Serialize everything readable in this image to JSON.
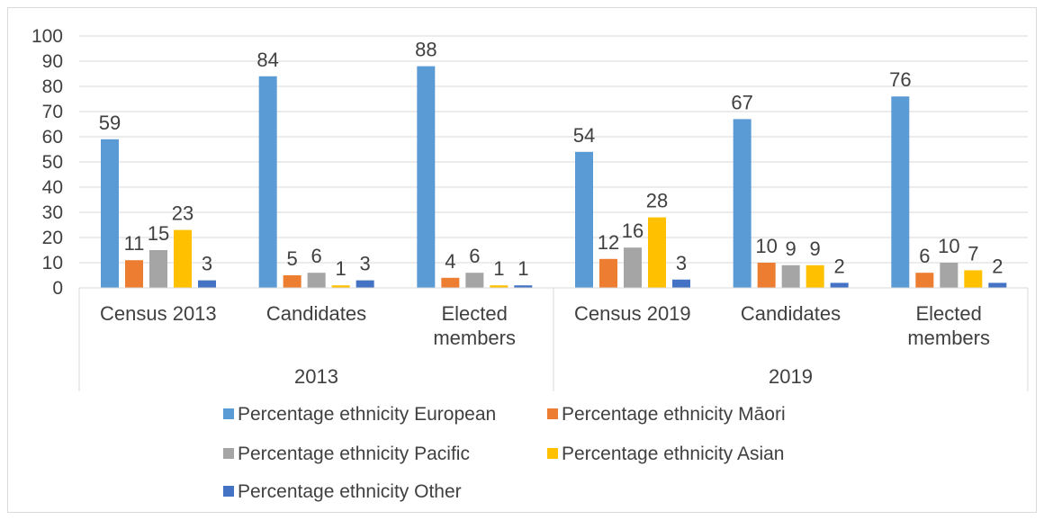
{
  "chart_data": {
    "type": "bar",
    "y_ticks": [
      "0",
      "10",
      "20",
      "30",
      "40",
      "50",
      "60",
      "70",
      "80",
      "90",
      "100"
    ],
    "ylim": [
      0,
      100
    ],
    "grid": "horizontal",
    "legend_position": "bottom",
    "groups": [
      {
        "name": "2013",
        "categories": [
          [
            "Census 2013"
          ],
          [
            "Candidates"
          ],
          [
            "Elected",
            "members"
          ]
        ]
      },
      {
        "name": "2019",
        "categories": [
          [
            "Census 2019"
          ],
          [
            "Candidates"
          ],
          [
            "Elected",
            "members"
          ]
        ]
      }
    ],
    "series": [
      {
        "name": "Percentage ethnicity European",
        "color": "#5b9bd5",
        "values": [
          59,
          84,
          88,
          54,
          67,
          76
        ],
        "labels": [
          "59",
          "84",
          "88",
          "54",
          "67",
          "76"
        ]
      },
      {
        "name": "Percentage ethnicity Māori",
        "color": "#ed7d31",
        "values": [
          11,
          5,
          4,
          11.5,
          10,
          6
        ],
        "labels": [
          "11",
          "5",
          "4",
          "12",
          "10",
          "6"
        ]
      },
      {
        "name": "Percentage ethnicity Pacific",
        "color": "#a5a5a5",
        "values": [
          15,
          6,
          6,
          16,
          9,
          10
        ],
        "labels": [
          "15",
          "6",
          "6",
          "16",
          "9",
          "10"
        ]
      },
      {
        "name": "Percentage ethnicity Asian",
        "color": "#ffc000",
        "values": [
          23,
          1,
          1,
          28,
          9,
          7
        ],
        "labels": [
          "23",
          "1",
          "1",
          "28",
          "9",
          "7"
        ]
      },
      {
        "name": "Percentage ethnicity Other",
        "color": "#4472c4",
        "values": [
          3,
          3,
          1,
          3.3,
          2,
          2
        ],
        "labels": [
          "3",
          "3",
          "1",
          "3",
          "2",
          "2"
        ]
      }
    ]
  }
}
